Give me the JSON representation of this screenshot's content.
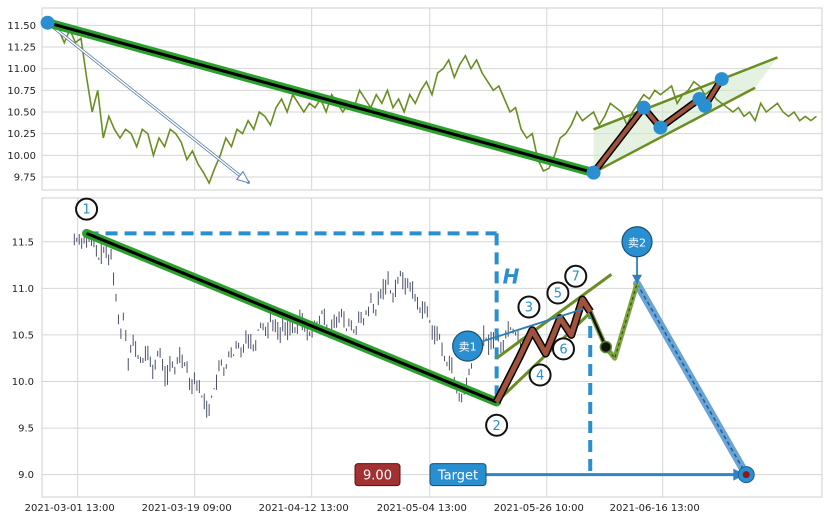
{
  "chart_data": [
    {
      "type": "line",
      "panel": "top",
      "ylim": [
        9.6,
        11.7
      ],
      "yticks": [
        "11.50",
        "11.25",
        "11.00",
        "10.75",
        "10.50",
        "10.25",
        "10.00",
        "9.75"
      ],
      "ytick_values": [
        11.5,
        11.25,
        11.0,
        10.75,
        10.5,
        10.25,
        10.0,
        9.75
      ],
      "grid": true,
      "series_price": {
        "t": [
          0.5,
          0.9,
          1.5,
          2,
          2.5,
          3,
          3.5,
          4,
          4.5,
          5,
          5.5,
          6,
          6.5,
          7,
          7.5,
          8,
          8.5,
          9,
          9.5,
          10,
          10.5,
          11,
          11.5,
          12,
          12.5,
          13,
          13.5,
          14,
          14.5,
          15,
          15.5,
          16,
          16.5,
          17,
          17.5,
          18,
          18.5,
          19,
          19.5,
          20,
          20.5,
          21,
          21.5,
          22,
          22.5,
          23,
          23.5,
          24,
          24.5,
          25,
          25.5,
          26,
          26.5,
          27,
          27.5,
          28,
          28.5,
          29,
          29.5,
          30,
          30.5,
          31,
          31.5,
          32,
          32.5,
          33,
          33.5,
          34,
          34.5,
          35,
          35.5,
          36,
          36.5,
          37,
          37.5,
          38,
          38.5,
          39,
          39.5,
          40,
          40.5,
          41,
          41.5,
          42,
          42.5,
          43,
          43.5,
          44,
          44.5,
          45,
          45.5,
          46,
          46.5,
          47,
          47.5,
          48,
          48.5,
          49,
          49.5,
          50,
          50.5,
          51,
          51.5,
          52,
          52.5,
          53,
          53.5,
          54,
          54.5,
          55,
          55.5,
          56,
          56.5,
          57,
          57.5,
          58,
          58.5,
          59,
          59.5,
          60,
          60.5,
          61,
          61.5,
          62,
          62.5,
          63,
          63.5,
          64,
          64.5,
          65,
          65.5,
          66,
          66.5,
          67,
          67.5,
          68,
          68.5,
          69,
          69.5
        ],
        "v": [
          11.53,
          11.5,
          11.45,
          11.3,
          11.45,
          11.3,
          11.35,
          10.9,
          10.5,
          10.75,
          10.2,
          10.45,
          10.3,
          10.2,
          10.3,
          10.25,
          10.1,
          10.3,
          10.25,
          10.0,
          10.2,
          10.1,
          10.3,
          10.25,
          10.15,
          9.95,
          10.05,
          9.9,
          9.8,
          9.68,
          9.85,
          10.0,
          10.2,
          10.1,
          10.3,
          10.25,
          10.4,
          10.3,
          10.5,
          10.45,
          10.35,
          10.55,
          10.65,
          10.5,
          10.7,
          10.6,
          10.5,
          10.6,
          10.55,
          10.65,
          10.5,
          10.7,
          10.6,
          10.5,
          10.6,
          10.55,
          10.75,
          10.65,
          10.55,
          10.7,
          10.6,
          10.75,
          10.55,
          10.65,
          10.5,
          10.7,
          10.6,
          10.75,
          10.85,
          10.7,
          10.95,
          11.0,
          11.1,
          10.9,
          11.05,
          11.15,
          11.0,
          11.1,
          10.95,
          10.85,
          10.75,
          10.8,
          10.65,
          10.5,
          10.55,
          10.3,
          10.2,
          10.25,
          9.95,
          9.82,
          9.85,
          10.0,
          10.2,
          10.25,
          10.35,
          10.5,
          10.4,
          10.45,
          10.5,
          10.35,
          10.45,
          10.6,
          10.55,
          10.5,
          10.35,
          10.5,
          10.6,
          10.7,
          10.65,
          10.75,
          10.7,
          10.75,
          10.8,
          10.6,
          10.7,
          10.75,
          10.85,
          10.8,
          10.7,
          10.75,
          10.65,
          10.6,
          10.55,
          10.5,
          10.55,
          10.45,
          10.5,
          10.4,
          10.6,
          10.5,
          10.55,
          10.6,
          10.5,
          10.45,
          10.5,
          10.4,
          10.45,
          10.4,
          10.45
        ]
      },
      "main_trend": {
        "from": [
          0.5,
          11.53
        ],
        "to": [
          49.5,
          9.8
        ]
      },
      "arrow": {
        "from": [
          0.5,
          11.53
        ],
        "to": [
          18.6,
          9.68
        ]
      },
      "pattern_points": [
        [
          49.5,
          9.8
        ],
        [
          54.0,
          10.55
        ],
        [
          55.5,
          10.32
        ],
        [
          59.0,
          10.65
        ],
        [
          59.5,
          10.57
        ],
        [
          61.0,
          10.88
        ]
      ],
      "channel_upper": {
        "from": [
          49.5,
          10.3
        ],
        "to": [
          66.0,
          11.13
        ]
      },
      "channel_lower": {
        "from": [
          49.5,
          9.8
        ],
        "to": [
          64.0,
          10.78
        ]
      }
    },
    {
      "type": "ohlc",
      "panel": "bottom",
      "ylim": [
        8.76,
        11.97
      ],
      "yticks": [
        "11.5",
        "11.0",
        "10.5",
        "10.0",
        "9.5",
        "9.0"
      ],
      "ytick_values": [
        11.5,
        11.0,
        10.5,
        10.0,
        9.5,
        9.0
      ],
      "grid": true,
      "xticks": [
        "2021-03-01 13:00",
        "2021-03-19 09:00",
        "2021-04-12 13:00",
        "2021-05-04 13:00",
        "2021-05-26 10:00",
        "2021-06-16 13:00"
      ],
      "xtick_positions": [
        3.2,
        13.7,
        24.2,
        34.8,
        45.3,
        55.7
      ],
      "main_trend": {
        "from": [
          4.0,
          11.59
        ],
        "to": [
          40.8,
          9.78
        ]
      },
      "h_line": {
        "from": [
          4.0,
          11.59
        ],
        "to": [
          40.8,
          11.59
        ]
      },
      "h_vertical": {
        "x": 40.8,
        "from": 11.59,
        "to": 9.78
      },
      "h_label": "H",
      "zigzag": [
        [
          40.8,
          9.78
        ],
        [
          42.8,
          10.25
        ],
        [
          44.0,
          10.55
        ],
        [
          45.2,
          10.3
        ],
        [
          46.5,
          10.68
        ],
        [
          47.5,
          10.5
        ],
        [
          48.5,
          10.88
        ],
        [
          49.2,
          10.75
        ]
      ],
      "zigzag_extension": [
        [
          49.2,
          10.75
        ],
        [
          50.6,
          10.37
        ],
        [
          51.4,
          10.25
        ],
        [
          53.4,
          11.05
        ]
      ],
      "extension_dot": [
        50.6,
        10.37
      ],
      "channel_upper": {
        "from": [
          40.8,
          10.25
        ],
        "to": [
          51.1,
          11.15
        ]
      },
      "channel_lower": {
        "from": [
          40.8,
          9.78
        ],
        "to": [
          49.3,
          10.75
        ]
      },
      "target_line": {
        "from": [
          53.4,
          11.05
        ],
        "to": [
          63.2,
          9.0
        ]
      },
      "target_dot": [
        63.2,
        9.0
      ],
      "target_vertical": {
        "x": 49.2,
        "from": 10.8,
        "to": 9.0
      },
      "target_arrow": {
        "from": [
          39.5,
          9.0
        ],
        "to": [
          62.4,
          9.0
        ]
      },
      "numbered_points": [
        {
          "label": "1",
          "pos": [
            4.0,
            11.59
          ],
          "circle": [
            4.0,
            11.85
          ]
        },
        {
          "label": "2",
          "pos": [
            40.8,
            9.78
          ],
          "circle": [
            40.8,
            9.53
          ]
        },
        {
          "label": "3",
          "pos": [
            43.4,
            10.5
          ],
          "circle": [
            43.7,
            10.8
          ]
        },
        {
          "label": "4",
          "pos": [
            45.2,
            10.3
          ],
          "circle": [
            44.7,
            10.07
          ]
        },
        {
          "label": "5",
          "pos": [
            46.5,
            10.68
          ],
          "circle": [
            46.3,
            10.95
          ]
        },
        {
          "label": "6",
          "pos": [
            47.5,
            10.5
          ],
          "circle": [
            46.8,
            10.35
          ]
        },
        {
          "label": "7",
          "pos": [
            48.5,
            10.88
          ],
          "circle": [
            47.9,
            11.13
          ]
        }
      ],
      "sell_markers": [
        {
          "label": "卖1",
          "pos": [
            38.2,
            10.38
          ],
          "to": [
            48.6,
            10.78
          ]
        },
        {
          "label": "卖2",
          "pos": [
            53.4,
            11.5
          ],
          "to": [
            53.4,
            11.05
          ]
        }
      ],
      "price_box": "9.00",
      "target_box": "Target"
    }
  ],
  "colors": {
    "price_line": "#6b8e23",
    "trend_outer": "#2ca02c",
    "trend_inner": "#000000",
    "pattern_outer": "#8b0000",
    "pattern_fill": "#a0523c",
    "channel": "#6b8e23",
    "accent_blue": "#2a8fd0",
    "target_line": "#6aa3d5",
    "ohlc": "#4a5068",
    "box_red": "#a23131",
    "grid": "#d6d6d6"
  }
}
